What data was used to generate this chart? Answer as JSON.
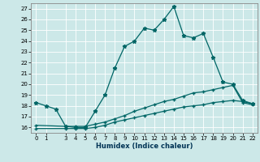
{
  "title": "",
  "xlabel": "Humidex (Indice chaleur)",
  "bg_color": "#cce8e8",
  "grid_color": "#ffffff",
  "line_color": "#006666",
  "xlim": [
    -0.5,
    22.5
  ],
  "ylim": [
    15.5,
    27.5
  ],
  "xticks": [
    0,
    1,
    3,
    4,
    5,
    6,
    7,
    8,
    9,
    10,
    11,
    12,
    13,
    14,
    15,
    16,
    17,
    18,
    19,
    20,
    21,
    22
  ],
  "yticks": [
    16,
    17,
    18,
    19,
    20,
    21,
    22,
    23,
    24,
    25,
    26,
    27
  ],
  "main_x": [
    0,
    1,
    2,
    3,
    4,
    5,
    6,
    7,
    8,
    9,
    10,
    11,
    12,
    13,
    14,
    15,
    16,
    17,
    18,
    19,
    20,
    21,
    22
  ],
  "main_y": [
    18.3,
    18.0,
    17.7,
    16.1,
    16.0,
    16.0,
    17.5,
    19.0,
    21.5,
    23.5,
    24.0,
    25.2,
    25.0,
    26.0,
    27.2,
    24.5,
    24.3,
    24.7,
    22.5,
    20.2,
    20.0,
    18.5,
    18.2
  ],
  "line2_x": [
    0,
    3,
    4,
    5,
    6,
    7,
    8,
    9,
    10,
    11,
    12,
    13,
    14,
    15,
    16,
    17,
    18,
    19,
    20,
    21,
    22
  ],
  "line2_y": [
    16.2,
    16.1,
    16.1,
    16.1,
    16.3,
    16.5,
    16.8,
    17.1,
    17.5,
    17.8,
    18.1,
    18.4,
    18.6,
    18.9,
    19.2,
    19.3,
    19.5,
    19.7,
    19.9,
    18.3,
    18.1
  ],
  "line3_x": [
    0,
    3,
    4,
    5,
    6,
    7,
    8,
    9,
    10,
    11,
    12,
    13,
    14,
    15,
    16,
    17,
    18,
    19,
    20,
    21,
    22
  ],
  "line3_y": [
    15.9,
    15.9,
    15.9,
    15.9,
    16.0,
    16.2,
    16.5,
    16.7,
    16.9,
    17.1,
    17.3,
    17.5,
    17.7,
    17.9,
    18.0,
    18.1,
    18.3,
    18.4,
    18.5,
    18.4,
    18.2
  ],
  "xlabel_fontsize": 6.0,
  "tick_fontsize": 5.0,
  "linewidth": 0.9,
  "marker_size": 2.5
}
